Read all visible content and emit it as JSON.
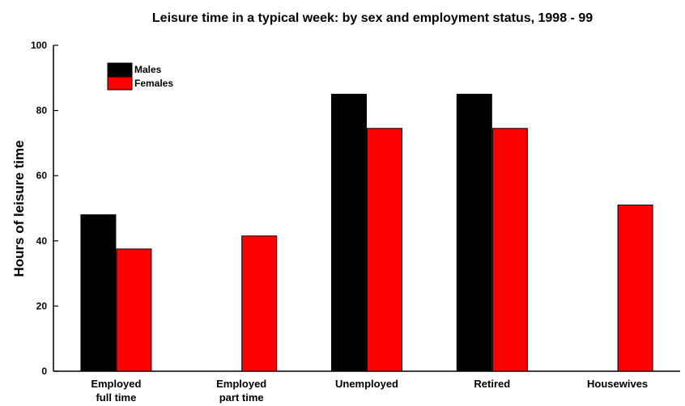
{
  "chart_data": {
    "type": "bar",
    "title": "Leisure time in a typical week: by sex and employment status, 1998 - 99",
    "xlabel": "",
    "ylabel": "Hours of leisure time",
    "ylim": [
      0,
      100
    ],
    "yticks": [
      0,
      20,
      40,
      60,
      80,
      100
    ],
    "grid": false,
    "legend_position": "top-left",
    "categories": [
      [
        "Employed",
        "full time"
      ],
      [
        "Employed",
        "part time"
      ],
      [
        "Unemployed"
      ],
      [
        "Retired"
      ],
      [
        "Housewives"
      ]
    ],
    "series": [
      {
        "name": "Males",
        "color": "#000000",
        "values": [
          48,
          null,
          85,
          85,
          null
        ]
      },
      {
        "name": "Females",
        "color": "#ff0000",
        "values": [
          37.5,
          41.5,
          74.5,
          74.5,
          51
        ]
      }
    ]
  }
}
